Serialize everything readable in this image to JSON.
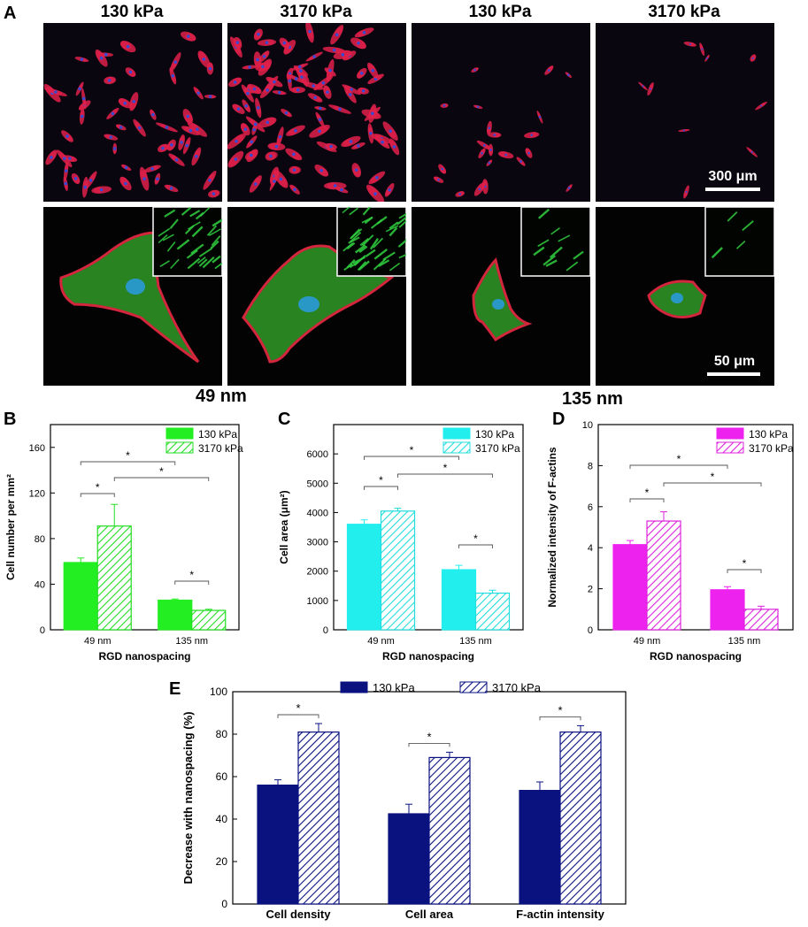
{
  "panel_labels": {
    "a": "A",
    "b": "B",
    "c": "C",
    "d": "D",
    "e": "E"
  },
  "micrographs": {
    "column_headers": [
      "130 kPa",
      "3170 kPa",
      "130 kPa",
      "3170 kPa"
    ],
    "group_labels": [
      "49 nm",
      "135 nm"
    ],
    "scale_top": "300 μm",
    "scale_bottom": "50 μm",
    "colors": {
      "actin": "#e0204a",
      "nucleus": "#3a4ad0",
      "focal": "#30d040"
    }
  },
  "chart_data": [
    {
      "id": "B",
      "type": "bar",
      "categories": [
        "49 nm",
        "135 nm"
      ],
      "series": [
        {
          "name": "130 kPa",
          "values": [
            59,
            26
          ],
          "errors": [
            4,
            1
          ],
          "color": "#22ee22",
          "pattern": "solid"
        },
        {
          "name": "3170 kPa",
          "values": [
            91,
            17
          ],
          "errors": [
            19,
            1
          ],
          "color": "#22dd22",
          "pattern": "hatch"
        }
      ],
      "xlabel": "RGD nanospacing",
      "ylabel": "Cell number per mm²",
      "ylim": [
        0,
        180
      ],
      "yticks": [
        0,
        40,
        80,
        120,
        160
      ],
      "legend": "top-right",
      "significance": "*"
    },
    {
      "id": "C",
      "type": "bar",
      "categories": [
        "49 nm",
        "135 nm"
      ],
      "series": [
        {
          "name": "130 kPa",
          "values": [
            3600,
            2050
          ],
          "errors": [
            150,
            150
          ],
          "color": "#22eeee",
          "pattern": "solid"
        },
        {
          "name": "3170 kPa",
          "values": [
            4050,
            1250
          ],
          "errors": [
            100,
            100
          ],
          "color": "#22dddd",
          "pattern": "hatch"
        }
      ],
      "xlabel": "RGD nanospacing",
      "ylabel": "Cell area (μm²)",
      "ylim": [
        0,
        7000
      ],
      "yticks": [
        0,
        1000,
        2000,
        3000,
        4000,
        5000,
        6000
      ],
      "legend": "top-right",
      "significance": "*"
    },
    {
      "id": "D",
      "type": "bar",
      "categories": [
        "49 nm",
        "135 nm"
      ],
      "series": [
        {
          "name": "130 kPa",
          "values": [
            4.15,
            1.95
          ],
          "errors": [
            0.2,
            0.15
          ],
          "color": "#ee22ee",
          "pattern": "solid"
        },
        {
          "name": "3170 kPa",
          "values": [
            5.3,
            1.0
          ],
          "errors": [
            0.45,
            0.15
          ],
          "color": "#dd22dd",
          "pattern": "hatch"
        }
      ],
      "xlabel": "RGD nanospacing",
      "ylabel": "Normalized intensity of F-actins",
      "ylim": [
        0,
        10
      ],
      "yticks": [
        0,
        2,
        4,
        6,
        8,
        10
      ],
      "legend": "top-right",
      "significance": "*"
    },
    {
      "id": "E",
      "type": "bar",
      "categories": [
        "Cell density",
        "Cell area",
        "F-actin intensity"
      ],
      "series": [
        {
          "name": "130 kPa",
          "values": [
            56,
            42.5,
            53.5
          ],
          "errors": [
            2.5,
            4.5,
            4
          ],
          "color": "#0a1280",
          "pattern": "solid"
        },
        {
          "name": "3170 kPa",
          "values": [
            81,
            69,
            81
          ],
          "errors": [
            4,
            2.5,
            3
          ],
          "color": "#0a1280",
          "pattern": "hatch"
        }
      ],
      "xlabel": "",
      "ylabel": "Decrease with nanospacing (%)",
      "ylim": [
        0,
        100
      ],
      "yticks": [
        0,
        20,
        40,
        60,
        80,
        100
      ],
      "legend": "top",
      "significance": "*"
    }
  ]
}
